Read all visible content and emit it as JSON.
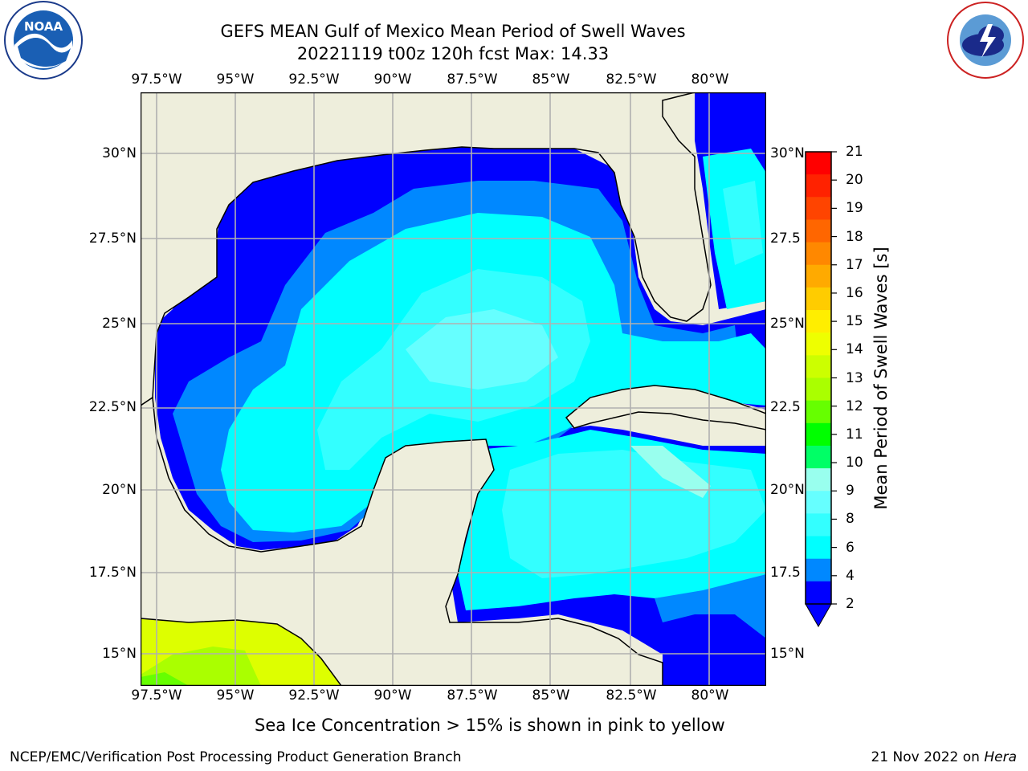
{
  "title_line1": "GEFS MEAN Gulf of Mexico Mean Period of Swell Waves",
  "title_line2": "20221119 t00z 120h fcst   Max: 14.33",
  "lon_labels": [
    "97.5°W",
    "95°W",
    "92.5°W",
    "90°W",
    "87.5°W",
    "85°W",
    "82.5°W",
    "80°W"
  ],
  "lat_labels_left": [
    "30°N",
    "27.5°N",
    "25°N",
    "22.5°N",
    "20°N",
    "17.5°N",
    "15°N"
  ],
  "lat_labels_right": [
    "30°N",
    "27.5",
    "25°N",
    "22.5",
    "20°N",
    "17.5",
    "15°N"
  ],
  "colorbar": {
    "label": "Mean Period of Swell Waves [s]",
    "ticks": [
      "21",
      "20",
      "19",
      "18",
      "17",
      "16",
      "15",
      "14",
      "13",
      "12",
      "11",
      "10",
      "9",
      "8",
      "6",
      "4",
      "2"
    ],
    "colors": [
      "#ff0000",
      "#ff2200",
      "#ff4400",
      "#ff6600",
      "#ff8800",
      "#ffaa00",
      "#ffcc00",
      "#ffee00",
      "#eeff00",
      "#ccff00",
      "#aaff00",
      "#66ff00",
      "#00ff00",
      "#00ff66",
      "#99ffee",
      "#66ffff",
      "#33ffff",
      "#00ffff",
      "#0088ff",
      "#0000ff"
    ]
  },
  "map": {
    "lon_range": [
      -98.0,
      -78.2
    ],
    "lat_range": [
      14.0,
      31.8
    ],
    "land_color": "#eeeedc",
    "grid_color": "#b0b0b0"
  },
  "caption": "Sea Ice Concentration > 15% is shown in pink to yellow",
  "footer_left": "NCEP/EMC/Verification Post Processing Product Generation Branch",
  "footer_right_prefix": "21 Nov 2022 on ",
  "footer_right_host": "Hera",
  "logos": {
    "left": "NOAA",
    "right": "NATIONAL WEATHER SERVICE",
    "noaa_ring": "NATIONAL OCEANIC AND ATMOSPHERIC ADMINISTRATION · U.S. DEPARTMENT OF COMMERCE"
  }
}
